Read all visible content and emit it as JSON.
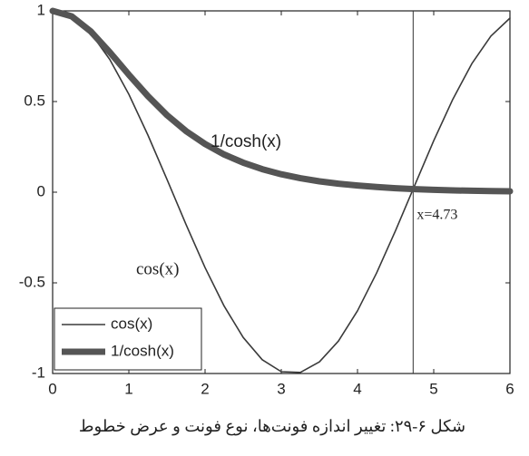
{
  "chart_data": {
    "type": "line",
    "x": [
      0,
      0.25,
      0.5,
      0.75,
      1,
      1.25,
      1.5,
      1.75,
      2,
      2.25,
      2.5,
      2.75,
      3,
      3.25,
      3.5,
      3.75,
      4,
      4.25,
      4.5,
      4.75,
      5,
      5.25,
      5.5,
      5.75,
      6
    ],
    "series": [
      {
        "name": "cos(x)",
        "color": "#3a3a3a",
        "line_width": 1.6,
        "values": [
          1,
          0.969,
          0.878,
          0.732,
          0.54,
          0.315,
          0.071,
          -0.178,
          -0.416,
          -0.628,
          -0.801,
          -0.924,
          -0.99,
          -0.994,
          -0.936,
          -0.821,
          -0.654,
          -0.446,
          -0.211,
          0.037,
          0.284,
          0.512,
          0.709,
          0.861,
          0.96
        ]
      },
      {
        "name": "1/cosh(x)",
        "color": "#555555",
        "line_width": 7,
        "values": [
          1,
          0.97,
          0.887,
          0.772,
          0.648,
          0.53,
          0.425,
          0.337,
          0.266,
          0.208,
          0.163,
          0.127,
          0.099,
          0.077,
          0.06,
          0.047,
          0.037,
          0.029,
          0.022,
          0.017,
          0.013,
          0.01,
          0.008,
          0.006,
          0.005
        ]
      }
    ],
    "xlim": [
      0,
      6
    ],
    "xticks": [
      0,
      1,
      2,
      3,
      4,
      5,
      6
    ],
    "ylim": [
      -1,
      1
    ],
    "yticks": [
      -1,
      -0.5,
      0,
      0.5,
      1
    ],
    "vline": {
      "value": 4.73,
      "label": "x=4.73"
    },
    "annotations": [
      "1/cosh(x)",
      "cos(x)"
    ],
    "legend": "lower left",
    "caption": "شکل ۶-۲۹: تغییر اندازه فونت‌ها، نوع فونت و عرض خطوط"
  }
}
